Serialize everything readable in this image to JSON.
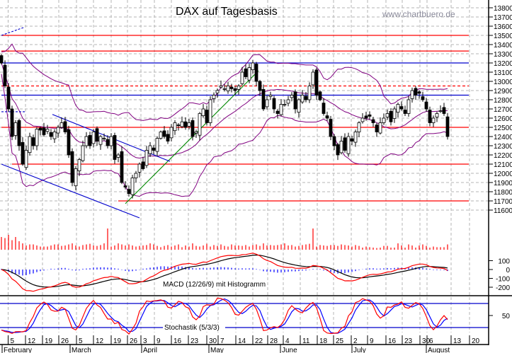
{
  "header": {
    "title": "DAX auf Tagesbasis",
    "watermark": "www.chartbuero.de"
  },
  "chart_data": {
    "type": "candlestick",
    "title": "DAX auf Tagesbasis",
    "price_axis": {
      "ticks": [
        13800,
        13700,
        13600,
        13500,
        13400,
        13300,
        13200,
        13100,
        13000,
        12900,
        12800,
        12700,
        12600,
        12500,
        12400,
        12300,
        12200,
        12100,
        12000,
        11900,
        11800,
        11700,
        11600
      ]
    },
    "close": [
      13200,
      12950,
      12700,
      12400,
      12550,
      12300,
      12100,
      12250,
      12400,
      12300,
      12480,
      12470,
      12420,
      12480,
      12400,
      12450,
      12500,
      12550,
      12450,
      12200,
      11900,
      12050,
      12150,
      12300,
      12400,
      12300,
      12450,
      12350,
      12400,
      12380,
      12300,
      12400,
      12150,
      12200,
      11900,
      11850,
      11780,
      11950,
      12000,
      12100,
      12050,
      12250,
      12300,
      12250,
      12380,
      12450,
      12400,
      12350,
      12500,
      12550,
      12520,
      12560,
      12500,
      12550,
      12400,
      12450,
      12650,
      12700,
      12550,
      12800,
      12850,
      12900,
      12950,
      12920,
      12950,
      12920,
      12900,
      12950,
      13100,
      13050,
      13150,
      13200,
      13000,
      12900,
      12700,
      12800,
      12850,
      12700,
      12650,
      12750,
      12750,
      12800,
      12850,
      12700,
      12800,
      12850,
      12800,
      12950,
      13100,
      12850,
      12800,
      12650,
      12600,
      12400,
      12300,
      12200,
      12350,
      12250,
      12400,
      12350,
      12450,
      12550,
      12600,
      12600,
      12620,
      12550,
      12450,
      12550,
      12600,
      12650,
      12560,
      12700,
      12750,
      12700,
      12650,
      12800,
      12900,
      12850,
      12870,
      12800,
      12700,
      12550,
      12600,
      12650,
      12680,
      12650,
      12400
    ],
    "volume_relative": [
      60,
      55,
      70,
      45,
      60,
      40,
      30,
      20,
      25,
      25,
      20,
      15,
      15,
      15,
      20,
      25,
      25,
      18,
      20,
      25,
      30,
      20,
      15,
      22,
      25,
      28,
      20,
      18,
      22,
      30,
      100,
      15,
      20,
      30,
      25,
      20,
      25,
      20,
      15,
      18,
      20,
      22,
      30,
      25,
      18,
      12,
      18,
      22,
      15,
      20,
      25,
      12,
      20,
      15,
      30,
      18,
      15,
      20,
      28,
      15,
      22,
      18,
      25,
      18,
      15,
      25,
      20,
      20,
      18,
      22,
      15,
      22,
      25,
      18,
      30,
      20,
      22,
      20,
      22,
      25,
      30,
      20,
      22,
      15,
      18,
      22,
      25,
      28,
      100,
      15,
      22,
      20,
      18,
      22,
      22,
      18,
      25,
      22,
      20,
      15,
      22,
      18,
      10,
      15,
      12,
      10,
      8,
      10,
      18,
      18,
      10,
      10,
      30,
      20,
      10,
      25,
      20,
      10,
      20,
      25,
      18,
      10,
      15,
      12,
      12,
      12,
      25
    ],
    "horizontal_lines": [
      {
        "price": 13500,
        "color": "#ff0000",
        "style": "solid",
        "from_index": 0
      },
      {
        "price": 13330,
        "color": "#ff0000",
        "style": "solid",
        "from_index": 0
      },
      {
        "price": 13200,
        "color": "#0000cc",
        "style": "solid",
        "from_index": 0
      },
      {
        "price": 12950,
        "color": "#ff0000",
        "style": "dashed",
        "from_index": 0
      },
      {
        "price": 12850,
        "color": "#0000cc",
        "style": "solid",
        "from_index": 0
      },
      {
        "price": 12500,
        "color": "#ff0000",
        "style": "solid",
        "from_index": 0
      },
      {
        "price": 12100,
        "color": "#ff0000",
        "style": "solid",
        "from_index": 3
      },
      {
        "price": 11700,
        "color": "#ff0000",
        "style": "solid",
        "from_index": 33
      }
    ],
    "trend_lines": [
      {
        "from": [
          35,
          11670
        ],
        "to": [
          72.6,
          13115
        ],
        "color": "#008800",
        "style": "solid"
      },
      {
        "from": [
          14.4,
          12640
        ],
        "to": [
          47.6,
          12130
        ],
        "color": "#0000cc",
        "style": "solid"
      },
      {
        "from": [
          0,
          12100
        ],
        "to": [
          39,
          11515
        ],
        "color": "#0000cc",
        "style": "solid"
      },
      {
        "from": [
          0,
          13500
        ],
        "to": [
          6.6,
          13590
        ],
        "color": "#0000cc",
        "style": "dashed"
      },
      {
        "from": [
          0,
          12670
        ],
        "to": [
          6.6,
          12670
        ],
        "color": "#0000cc",
        "style": "dashed"
      }
    ],
    "lines_end_index": 132,
    "bollinger": {
      "period": 20,
      "stddev": 2,
      "color": "#800080"
    },
    "macd": {
      "label": "MACD (12/26/9) mit Histogramm",
      "fast": 12,
      "slow": 26,
      "signal": 9,
      "ticks": [
        100,
        0,
        -100,
        -200
      ]
    },
    "stochastic": {
      "label": "Stochastik (5/3/3)",
      "period": 5,
      "k_smooth": 3,
      "d_smooth": 3,
      "levels": [
        80,
        20
      ],
      "ticks": [
        50
      ]
    },
    "x_ticks": [
      {
        "label": "5",
        "i": 1.9
      },
      {
        "label": "12",
        "i": 6.8
      },
      {
        "label": "19",
        "i": 11.6
      },
      {
        "label": "26",
        "i": 16.2
      },
      {
        "label": "5",
        "i": 21.2
      },
      {
        "label": "12",
        "i": 26
      },
      {
        "label": "19",
        "i": 31
      },
      {
        "label": "26",
        "i": 35.6
      },
      {
        "label": "3",
        "i": 39.4
      },
      {
        "label": "9",
        "i": 43.2
      },
      {
        "label": "16",
        "i": 48
      },
      {
        "label": "23",
        "i": 52.8
      },
      {
        "label": "30",
        "i": 58
      },
      {
        "label": "7",
        "i": 61.2
      },
      {
        "label": "14",
        "i": 66.2
      },
      {
        "label": "22",
        "i": 71
      },
      {
        "label": "28",
        "i": 75.2
      },
      {
        "label": "4",
        "i": 79.6
      },
      {
        "label": "11",
        "i": 84.4
      },
      {
        "label": "18",
        "i": 89.2
      },
      {
        "label": "25",
        "i": 93.8
      },
      {
        "label": "2",
        "i": 98.8
      },
      {
        "label": "9",
        "i": 103.4
      },
      {
        "label": "16",
        "i": 108.6
      },
      {
        "label": "23",
        "i": 113.2
      },
      {
        "label": "30",
        "i": 118.2
      },
      {
        "label": "6",
        "i": 120.2
      },
      {
        "label": "13",
        "i": 127
      },
      {
        "label": "20",
        "i": 132.2
      }
    ],
    "months": [
      {
        "label": "February",
        "i": 0.2
      },
      {
        "label": "March",
        "i": 19.4
      },
      {
        "label": "April",
        "i": 39.6
      },
      {
        "label": "May",
        "i": 58.6
      },
      {
        "label": "June",
        "i": 78.8
      },
      {
        "label": "July",
        "i": 99
      },
      {
        "label": "August",
        "i": 120
      }
    ],
    "colors": {
      "up": "#ffffff",
      "down": "#000000",
      "volume": "#ff0000",
      "macd": "#ff0000",
      "signal": "#000000",
      "histogram": "#0000ff",
      "stoch_k": "#ff0000",
      "stoch_d": "#0000ff",
      "grid": "#b4b4b4"
    }
  }
}
